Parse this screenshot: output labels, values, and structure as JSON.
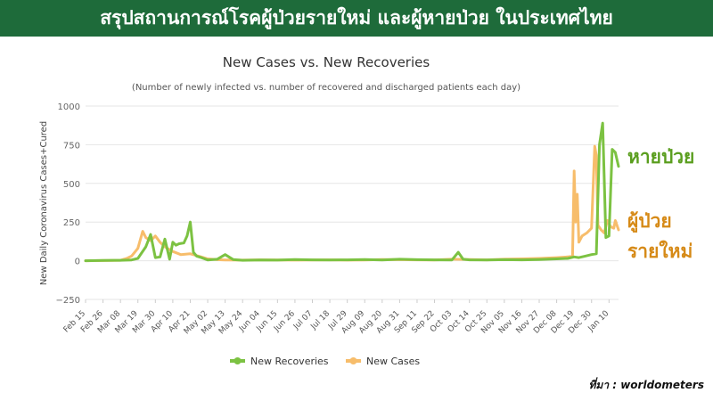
{
  "banner": {
    "title": "สรุปสถานการณ์โรคผู้ป่วยรายใหม่ และผู้หายป่วย ในประเทศไทย"
  },
  "side_labels": {
    "recovered": "หายป่วย",
    "new_cases_line1": "ผู้ป่วย",
    "new_cases_line2": "รายใหม่"
  },
  "source": "ที่มา : worldometers",
  "colors": {
    "banner": "#1e6b3a",
    "recoveries": "#7cc242",
    "cases": "#f7bd6b",
    "recovered_label": "#5a9e1e",
    "cases_label": "#d68a17"
  },
  "chart_data": {
    "type": "line",
    "title": "New Cases vs. New Recoveries",
    "subtitle": "(Number of newly infected vs. number of recovered and discharged patients each day)",
    "ylabel": "New Daily Coronavirus Cases+Cured",
    "xlabel": "",
    "ylim": [
      -250,
      1000
    ],
    "yticks": [
      -250,
      0,
      250,
      500,
      750,
      1000
    ],
    "x_start": "Feb 15",
    "x_end": "Jan 16",
    "grid": "horizontal",
    "legend_position": "bottom-center",
    "categories": [
      "Feb 15",
      "Feb 26",
      "Mar 08",
      "Mar 19",
      "Mar 30",
      "Apr 10",
      "Apr 21",
      "May 02",
      "May 13",
      "May 24",
      "Jun 04",
      "Jun 15",
      "Jun 26",
      "Jul 07",
      "Jul 18",
      "Jul 29",
      "Aug 09",
      "Aug 20",
      "Aug 31",
      "Sep 11",
      "Sep 22",
      "Oct 03",
      "Oct 14",
      "Oct 25",
      "Nov 05",
      "Nov 16",
      "Nov 27",
      "Dec 08",
      "Dec 19",
      "Dec 30",
      "Jan 10"
    ],
    "series": [
      {
        "name": "New Recoveries",
        "color": "#7cc242",
        "x": [
          "Feb 15",
          "Feb 26",
          "Mar 08",
          "Mar 15",
          "Mar 19",
          "Mar 24",
          "Mar 27",
          "Mar 30",
          "Apr 02",
          "Apr 05",
          "Apr 08",
          "Apr 10",
          "Apr 12",
          "Apr 14",
          "Apr 17",
          "Apr 19",
          "Apr 21",
          "Apr 23",
          "Apr 25",
          "Apr 28",
          "May 02",
          "May 08",
          "May 13",
          "May 18",
          "May 24",
          "Jun 04",
          "Jun 15",
          "Jun 26",
          "Jul 07",
          "Jul 18",
          "Jul 29",
          "Aug 09",
          "Aug 20",
          "Aug 31",
          "Sep 11",
          "Sep 22",
          "Oct 03",
          "Oct 07",
          "Oct 10",
          "Oct 14",
          "Oct 25",
          "Nov 05",
          "Nov 16",
          "Nov 27",
          "Dec 08",
          "Dec 15",
          "Dec 19",
          "Dec 22",
          "Dec 26",
          "Dec 30",
          "Jan 02",
          "Jan 04",
          "Jan 06",
          "Jan 08",
          "Jan 10",
          "Jan 12",
          "Jan 14",
          "Jan 16"
        ],
        "values": [
          0,
          2,
          3,
          5,
          15,
          90,
          170,
          20,
          25,
          140,
          10,
          120,
          100,
          110,
          115,
          160,
          250,
          55,
          30,
          20,
          5,
          10,
          40,
          8,
          3,
          5,
          4,
          8,
          6,
          5,
          6,
          8,
          5,
          10,
          7,
          6,
          5,
          55,
          10,
          6,
          5,
          7,
          6,
          8,
          12,
          15,
          25,
          20,
          30,
          40,
          45,
          750,
          890,
          150,
          160,
          720,
          700,
          610
        ]
      },
      {
        "name": "New Cases",
        "color": "#f7bd6b",
        "x": [
          "Feb 15",
          "Feb 26",
          "Mar 08",
          "Mar 12",
          "Mar 15",
          "Mar 19",
          "Mar 22",
          "Mar 24",
          "Mar 27",
          "Mar 30",
          "Apr 02",
          "Apr 05",
          "Apr 10",
          "Apr 15",
          "Apr 21",
          "Apr 28",
          "May 02",
          "May 08",
          "May 13",
          "May 24",
          "Jun 04",
          "Jun 15",
          "Jun 26",
          "Jul 07",
          "Jul 18",
          "Jul 29",
          "Aug 09",
          "Aug 20",
          "Aug 31",
          "Sep 11",
          "Sep 22",
          "Oct 03",
          "Oct 14",
          "Oct 25",
          "Nov 05",
          "Nov 16",
          "Nov 27",
          "Dec 08",
          "Dec 15",
          "Dec 18",
          "Dec 19",
          "Dec 20",
          "Dec 21",
          "Dec 22",
          "Dec 24",
          "Dec 27",
          "Dec 30",
          "Jan 01",
          "Jan 02",
          "Jan 03",
          "Jan 05",
          "Jan 07",
          "Jan 09",
          "Jan 11",
          "Jan 13",
          "Jan 14",
          "Jan 16"
        ],
        "values": [
          0,
          1,
          3,
          15,
          30,
          80,
          190,
          150,
          130,
          160,
          120,
          90,
          60,
          40,
          45,
          25,
          12,
          7,
          5,
          4,
          6,
          5,
          4,
          5,
          6,
          4,
          5,
          8,
          7,
          6,
          5,
          10,
          8,
          6,
          10,
          12,
          15,
          20,
          25,
          30,
          580,
          250,
          430,
          120,
          160,
          180,
          210,
          740,
          680,
          230,
          200,
          180,
          260,
          220,
          210,
          260,
          200
        ]
      }
    ]
  }
}
